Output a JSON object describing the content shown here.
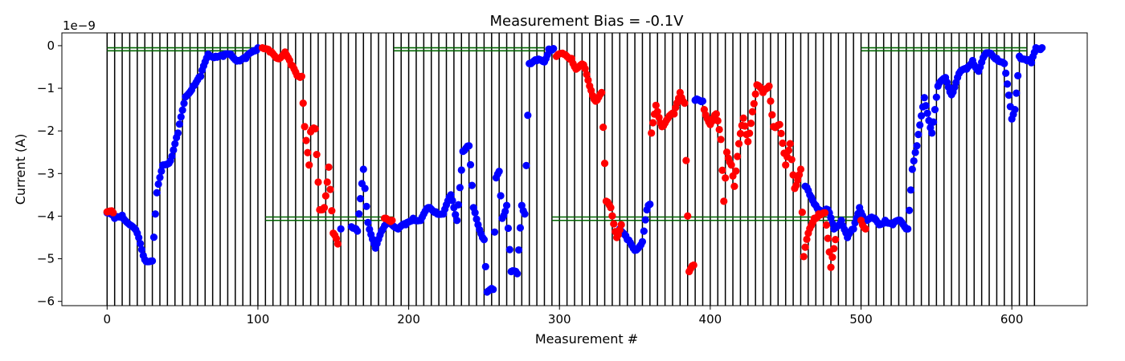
{
  "chart_data": {
    "type": "scatter",
    "title": "Measurement Bias = -0.1V",
    "xlabel": "Measurement #",
    "ylabel": "Current (A)",
    "offset_text": "1e−9",
    "xlim": [
      -30,
      650
    ],
    "ylim": [
      -6.1,
      0.3
    ],
    "x_ticks": [
      0,
      100,
      200,
      300,
      400,
      500,
      600
    ],
    "y_ticks": [
      0,
      -1,
      -2,
      -3,
      -4,
      -5,
      -6
    ],
    "y_tick_labels": [
      "0",
      "−1",
      "−2",
      "−3",
      "−4",
      "−5",
      "−6"
    ],
    "grid": false,
    "vlines": {
      "start": 0,
      "end": 615,
      "step": 5,
      "ymin": -6.1,
      "ymax": 0.3,
      "color": "#000000"
    },
    "hlines": [
      {
        "xmin": 0,
        "xmax": 100,
        "y": [
          -0.05,
          -0.12
        ],
        "color": "#006400"
      },
      {
        "xmin": 190,
        "xmax": 290,
        "y": [
          -0.05,
          -0.12
        ],
        "color": "#006400"
      },
      {
        "xmin": 500,
        "xmax": 610,
        "y": [
          -0.05,
          -0.12
        ],
        "color": "#006400"
      },
      {
        "xmin": 105,
        "xmax": 190,
        "y": [
          -4.02,
          -4.1
        ],
        "color": "#006400"
      },
      {
        "xmin": 295,
        "xmax": 495,
        "y": [
          -4.02,
          -4.1
        ],
        "color": "#006400"
      }
    ],
    "series_colors": {
      "blue": "#0000ff",
      "red": "#ff0000"
    },
    "knots_blue": [
      [
        0,
        -3.92
      ],
      [
        5,
        -4.05
      ],
      [
        10,
        -3.98
      ],
      [
        15,
        -4.2
      ],
      [
        20,
        -4.4
      ],
      [
        25,
        -5.02
      ],
      [
        30,
        -5.05
      ],
      [
        33,
        -3.45
      ],
      [
        37,
        -2.8
      ],
      [
        42,
        -2.7
      ],
      [
        47,
        -2.05
      ],
      [
        52,
        -1.2
      ],
      [
        57,
        -0.95
      ],
      [
        62,
        -0.72
      ],
      [
        67,
        -0.2
      ],
      [
        72,
        -0.25
      ],
      [
        77,
        -0.25
      ],
      [
        82,
        -0.2
      ],
      [
        87,
        -0.35
      ],
      [
        92,
        -0.3
      ],
      [
        97,
        -0.12
      ],
      [
        100,
        -0.05
      ],
      [
        155,
        -4.3
      ],
      [
        162,
        -4.25
      ],
      [
        166,
        -4.35
      ],
      [
        170,
        -2.9
      ],
      [
        171,
        -3.35
      ],
      [
        173,
        -4.15
      ],
      [
        178,
        -4.75
      ],
      [
        183,
        -4.3
      ],
      [
        187,
        -4.1
      ],
      [
        193,
        -4.3
      ],
      [
        198,
        -4.2
      ],
      [
        203,
        -4.05
      ],
      [
        208,
        -4.1
      ],
      [
        213,
        -3.8
      ],
      [
        218,
        -3.9
      ],
      [
        223,
        -3.95
      ],
      [
        228,
        -3.5
      ],
      [
        232,
        -4.1
      ],
      [
        236,
        -2.48
      ],
      [
        240,
        -2.35
      ],
      [
        243,
        -3.8
      ],
      [
        246,
        -4.2
      ],
      [
        250,
        -4.55
      ],
      [
        252,
        -5.78
      ],
      [
        256,
        -5.72
      ],
      [
        258,
        -3.1
      ],
      [
        260,
        -2.95
      ],
      [
        262,
        -4.05
      ],
      [
        265,
        -3.75
      ],
      [
        268,
        -5.3
      ],
      [
        272,
        -5.35
      ],
      [
        275,
        -3.75
      ],
      [
        277,
        -3.95
      ],
      [
        280,
        -0.42
      ],
      [
        285,
        -0.35
      ],
      [
        290,
        -0.38
      ],
      [
        293,
        -0.08
      ],
      [
        296,
        -0.07
      ],
      [
        340,
        -4.3
      ],
      [
        345,
        -4.55
      ],
      [
        350,
        -4.8
      ],
      [
        355,
        -4.6
      ],
      [
        358,
        -3.85
      ],
      [
        360,
        -3.72
      ],
      [
        390,
        -1.28
      ],
      [
        395,
        -1.3
      ],
      [
        463,
        -3.3
      ],
      [
        466,
        -3.5
      ],
      [
        470,
        -3.75
      ],
      [
        475,
        -3.9
      ],
      [
        478,
        -3.85
      ],
      [
        482,
        -4.3
      ],
      [
        487,
        -4.1
      ],
      [
        491,
        -4.5
      ],
      [
        495,
        -4.3
      ],
      [
        499,
        -3.8
      ],
      [
        503,
        -4.1
      ],
      [
        508,
        -4.05
      ],
      [
        512,
        -4.2
      ],
      [
        516,
        -4.1
      ],
      [
        521,
        -4.2
      ],
      [
        526,
        -4.1
      ],
      [
        531,
        -4.3
      ],
      [
        534,
        -2.9
      ],
      [
        537,
        -2.35
      ],
      [
        542,
        -1.22
      ],
      [
        547,
        -2.05
      ],
      [
        551,
        -0.95
      ],
      [
        556,
        -0.75
      ],
      [
        560,
        -1.15
      ],
      [
        565,
        -0.65
      ],
      [
        570,
        -0.55
      ],
      [
        574,
        -0.35
      ],
      [
        578,
        -0.6
      ],
      [
        582,
        -0.22
      ],
      [
        586,
        -0.18
      ],
      [
        590,
        -0.3
      ],
      [
        595,
        -0.42
      ],
      [
        600,
        -1.72
      ],
      [
        602,
        -1.5
      ],
      [
        605,
        -0.25
      ],
      [
        610,
        -0.35
      ],
      [
        613,
        -0.4
      ],
      [
        616,
        -0.05
      ],
      [
        620,
        -0.05
      ]
    ],
    "knots_red": [
      [
        0,
        -3.9
      ],
      [
        4,
        -3.92
      ],
      [
        103,
        -0.05
      ],
      [
        108,
        -0.15
      ],
      [
        113,
        -0.3
      ],
      [
        118,
        -0.15
      ],
      [
        122,
        -0.45
      ],
      [
        126,
        -0.7
      ],
      [
        129,
        -0.72
      ],
      [
        131,
        -1.9
      ],
      [
        135,
        -2.02
      ],
      [
        138,
        -1.95
      ],
      [
        134,
        -2.8
      ],
      [
        141,
        -3.85
      ],
      [
        144,
        -3.8
      ],
      [
        147,
        -2.85
      ],
      [
        150,
        -4.4
      ],
      [
        153,
        -4.65
      ],
      [
        184,
        -4.05
      ],
      [
        189,
        -4.1
      ],
      [
        298,
        -0.25
      ],
      [
        303,
        -0.2
      ],
      [
        308,
        -0.3
      ],
      [
        311,
        -0.55
      ],
      [
        316,
        -0.45
      ],
      [
        321,
        -1.05
      ],
      [
        324,
        -1.3
      ],
      [
        328,
        -1.1
      ],
      [
        331,
        -3.65
      ],
      [
        334,
        -3.8
      ],
      [
        338,
        -4.5
      ],
      [
        341,
        -4.2
      ],
      [
        361,
        -2.05
      ],
      [
        364,
        -1.4
      ],
      [
        368,
        -1.9
      ],
      [
        372,
        -1.7
      ],
      [
        376,
        -1.6
      ],
      [
        380,
        -1.1
      ],
      [
        383,
        -1.35
      ],
      [
        386,
        -5.3
      ],
      [
        389,
        -5.15
      ],
      [
        396,
        -1.5
      ],
      [
        400,
        -1.85
      ],
      [
        404,
        -1.6
      ],
      [
        407,
        -2.2
      ],
      [
        409,
        -3.65
      ],
      [
        411,
        -2.5
      ],
      [
        414,
        -2.8
      ],
      [
        416,
        -3.3
      ],
      [
        419,
        -2.3
      ],
      [
        422,
        -1.7
      ],
      [
        425,
        -2.25
      ],
      [
        428,
        -1.55
      ],
      [
        431,
        -0.92
      ],
      [
        435,
        -1.1
      ],
      [
        439,
        -0.95
      ],
      [
        442,
        -1.9
      ],
      [
        446,
        -1.85
      ],
      [
        450,
        -2.8
      ],
      [
        453,
        -2.3
      ],
      [
        456,
        -3.35
      ],
      [
        460,
        -2.9
      ],
      [
        462,
        -4.95
      ],
      [
        465,
        -4.4
      ],
      [
        469,
        -4.05
      ],
      [
        472,
        -3.95
      ],
      [
        476,
        -3.92
      ],
      [
        480,
        -5.2
      ],
      [
        483,
        -4.55
      ],
      [
        500,
        -4.1
      ],
      [
        503,
        -4.3
      ]
    ]
  }
}
